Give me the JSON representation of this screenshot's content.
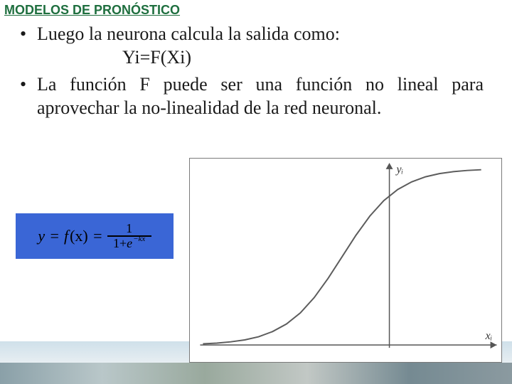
{
  "title": "MODELOS DE PRONÓSTICO",
  "bullets": {
    "item1": "Luego la neurona calcula la salida como:",
    "formula": "Yi=F(Xi)",
    "item2": "La función F puede ser una función no lineal para aprovechar la no-linealidad de la red neuronal."
  },
  "equation": {
    "lhs_y": "y",
    "eq1": "=",
    "f": "f",
    "paren_x": "(x)",
    "eq2": "=",
    "numerator": "1",
    "den_prefix": "1+",
    "den_base": "e",
    "den_exp": "−kx",
    "background_color": "#3a66d6"
  },
  "chart": {
    "type": "line",
    "xlabel": "xᵢ",
    "ylabel": "yᵢ",
    "xlim": [
      -5,
      5
    ],
    "ylim": [
      0,
      1
    ],
    "axis_color": "#555555",
    "curve_color": "#5c5c5c",
    "curve_width": 2,
    "background": "#ffffff",
    "border": "#7a7a7a",
    "points": [
      [
        -5.0,
        0.007
      ],
      [
        -4.5,
        0.011
      ],
      [
        -4.0,
        0.018
      ],
      [
        -3.5,
        0.029
      ],
      [
        -3.0,
        0.047
      ],
      [
        -2.5,
        0.076
      ],
      [
        -2.0,
        0.119
      ],
      [
        -1.5,
        0.182
      ],
      [
        -1.0,
        0.269
      ],
      [
        -0.5,
        0.378
      ],
      [
        0.0,
        0.5
      ],
      [
        0.5,
        0.622
      ],
      [
        1.0,
        0.731
      ],
      [
        1.5,
        0.818
      ],
      [
        2.0,
        0.881
      ],
      [
        2.5,
        0.924
      ],
      [
        3.0,
        0.953
      ],
      [
        3.5,
        0.971
      ],
      [
        4.0,
        0.982
      ],
      [
        4.5,
        0.989
      ],
      [
        5.0,
        0.993
      ]
    ]
  }
}
